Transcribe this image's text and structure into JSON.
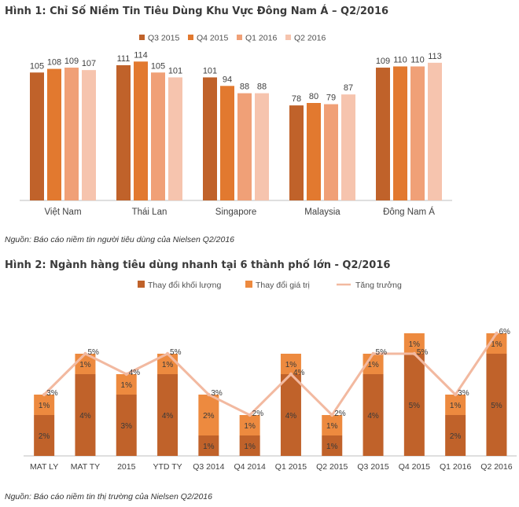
{
  "chart_data": [
    {
      "type": "bar",
      "title": "Hình 1: Chỉ Số Niềm Tin Tiêu Dùng Khu Vực Đông Nam Á – Q2/2016",
      "categories": [
        "Việt Nam",
        "Thái Lan",
        "Singapore",
        "Malaysia",
        "Đông Nam Á"
      ],
      "series": [
        {
          "name": "Q3 2015",
          "color": "#c0622a",
          "values": [
            105,
            111,
            101,
            78,
            109
          ]
        },
        {
          "name": "Q4 2015",
          "color": "#e2792f",
          "values": [
            108,
            114,
            94,
            80,
            110
          ]
        },
        {
          "name": "Q1 2016",
          "color": "#f0a077",
          "values": [
            109,
            105,
            88,
            79,
            110
          ]
        },
        {
          "name": "Q2 2016",
          "color": "#f6c4ae",
          "values": [
            107,
            101,
            88,
            87,
            113
          ]
        }
      ],
      "ylim": [
        0,
        120
      ],
      "legend": "top",
      "source": "Nguồn: Báo cáo niềm tin người tiêu dùng của Nielsen Q2/2016"
    },
    {
      "type": "bar",
      "stacked": true,
      "title": "Hình 2: Ngành hàng tiêu dùng nhanh tại 6 thành phố lớn  - Q2/2016",
      "categories": [
        "MAT LY",
        "MAT TY",
        "2015",
        "YTD TY",
        "Q3 2014",
        "Q4 2014",
        "Q1 2015",
        "Q2 2015",
        "Q3 2015",
        "Q4 2015",
        "Q1 2016",
        "Q2 2016"
      ],
      "series": [
        {
          "name": "Thay đổi khối lượng",
          "color": "#c0622a",
          "values": [
            2,
            4,
            3,
            4,
            1,
            1,
            4,
            1,
            4,
            5,
            2,
            5
          ],
          "labels": [
            "2%",
            "4%",
            "3%",
            "4%",
            "1%",
            "1%",
            "4%",
            "1%",
            "4%",
            "5%",
            "2%",
            "5%"
          ]
        },
        {
          "name": "Thay đổi giá trị",
          "color": "#ed8a3f",
          "values": [
            1,
            1,
            1,
            1,
            2,
            1,
            1,
            1,
            1,
            1,
            1,
            1
          ],
          "labels": [
            "1%",
            "1%",
            "1%",
            "1%",
            "2%",
            "1%",
            "1%",
            "1%",
            "1%",
            "1%",
            "1%",
            "1%"
          ]
        },
        {
          "name": "Tăng trưởng",
          "type": "line",
          "color": "#f2b9a0",
          "values": [
            3,
            5,
            4,
            5,
            3,
            2,
            4,
            2,
            5,
            5,
            3,
            6
          ],
          "labels": [
            "3%",
            "5%",
            "4%",
            "5%",
            "3%",
            "2%",
            "4%",
            "2%",
            "5%",
            "5%",
            "3%",
            "6%"
          ]
        }
      ],
      "legend": "top",
      "source": "Nguồn: Báo cáo niềm tin thị trường của Nielsen Q2/2016"
    }
  ]
}
